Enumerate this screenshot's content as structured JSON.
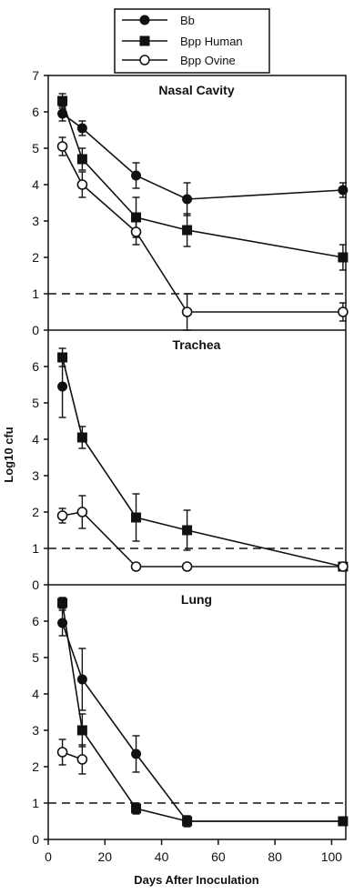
{
  "legend": {
    "items": [
      {
        "label": "Bb",
        "marker": "filled-circle"
      },
      {
        "label": "Bpp Human",
        "marker": "filled-square"
      },
      {
        "label": "Bpp Ovine",
        "marker": "open-circle"
      }
    ]
  },
  "axes": {
    "xlabel": "Days After Inoculation",
    "ylabel": "Log10 cfu",
    "xlim": [
      0,
      105
    ],
    "xticks": [
      0,
      20,
      40,
      60,
      80,
      100
    ],
    "xtick_labels": [
      "0",
      "20",
      "40",
      "60",
      "80",
      "100"
    ],
    "ylim": [
      0,
      7
    ],
    "yticks": [
      0,
      1,
      2,
      3,
      4,
      5,
      6,
      7
    ]
  },
  "colors": {
    "ink": "#111111",
    "background": "#ffffff"
  },
  "chart_data": [
    {
      "type": "line",
      "title": "Nasal Cavity",
      "ylim": [
        0,
        7
      ],
      "ytick_labels": [
        "0",
        "1",
        "2",
        "3",
        "4",
        "5",
        "6",
        "7"
      ],
      "threshold": 1,
      "series": [
        {
          "name": "Bb",
          "marker": "filled-circle",
          "x": [
            5,
            12,
            31,
            49,
            104
          ],
          "y": [
            5.95,
            5.55,
            4.25,
            3.6,
            3.85
          ],
          "err": [
            0.2,
            0.2,
            0.35,
            0.45,
            0.2
          ]
        },
        {
          "name": "Bpp Human",
          "marker": "filled-square",
          "x": [
            5,
            12,
            31,
            49,
            104
          ],
          "y": [
            6.3,
            4.7,
            3.1,
            2.75,
            2.0
          ],
          "err": [
            0.2,
            0.3,
            0.55,
            0.45,
            0.35
          ]
        },
        {
          "name": "Bpp Ovine",
          "marker": "open-circle",
          "x": [
            5,
            12,
            31,
            49,
            104
          ],
          "y": [
            5.05,
            4.0,
            2.7,
            0.5,
            0.5
          ],
          "err": [
            0.25,
            0.35,
            0.35,
            0.5,
            0.25
          ]
        }
      ]
    },
    {
      "type": "line",
      "title": "Trachea",
      "ylim": [
        0,
        7
      ],
      "ytick_labels": [
        "0",
        "1",
        "2",
        "3",
        "4",
        "5",
        "6"
      ],
      "threshold": 1,
      "series": [
        {
          "name": "Bb",
          "marker": "filled-circle",
          "x": [
            5
          ],
          "y": [
            5.45
          ],
          "err": [
            0.85
          ]
        },
        {
          "name": "Bpp Human",
          "marker": "filled-square",
          "x": [
            5,
            12,
            31,
            49,
            104
          ],
          "y": [
            6.25,
            4.05,
            1.85,
            1.5,
            0.5
          ],
          "err": [
            0.25,
            0.3,
            0.65,
            0.55,
            0.05
          ]
        },
        {
          "name": "Bpp Ovine",
          "marker": "open-circle",
          "x": [
            5,
            12,
            31,
            49,
            104
          ],
          "y": [
            1.9,
            2.0,
            0.5,
            0.5,
            0.5
          ],
          "err": [
            0.2,
            0.45,
            0.05,
            0.05,
            0.05
          ]
        }
      ]
    },
    {
      "type": "line",
      "title": "Lung",
      "ylim": [
        0,
        7
      ],
      "ytick_labels": [
        "0",
        "1",
        "2",
        "3",
        "4",
        "5",
        "6"
      ],
      "threshold": 1,
      "series": [
        {
          "name": "Bb",
          "marker": "filled-circle",
          "x": [
            5,
            12,
            31,
            49,
            104
          ],
          "y": [
            5.95,
            4.4,
            2.35,
            0.5,
            0.5
          ],
          "err": [
            0.35,
            0.85,
            0.5,
            0.15,
            0.1
          ]
        },
        {
          "name": "Bpp Human",
          "marker": "filled-square",
          "x": [
            5,
            12,
            31,
            49,
            104
          ],
          "y": [
            6.5,
            3.0,
            0.85,
            0.5,
            0.5
          ],
          "err": [
            0.15,
            0.45,
            0.15,
            0.1,
            0.1
          ]
        },
        {
          "name": "Bpp Ovine",
          "marker": "open-circle",
          "x": [
            5,
            12
          ],
          "y": [
            2.4,
            2.2
          ],
          "err": [
            0.35,
            0.4
          ]
        }
      ]
    }
  ]
}
